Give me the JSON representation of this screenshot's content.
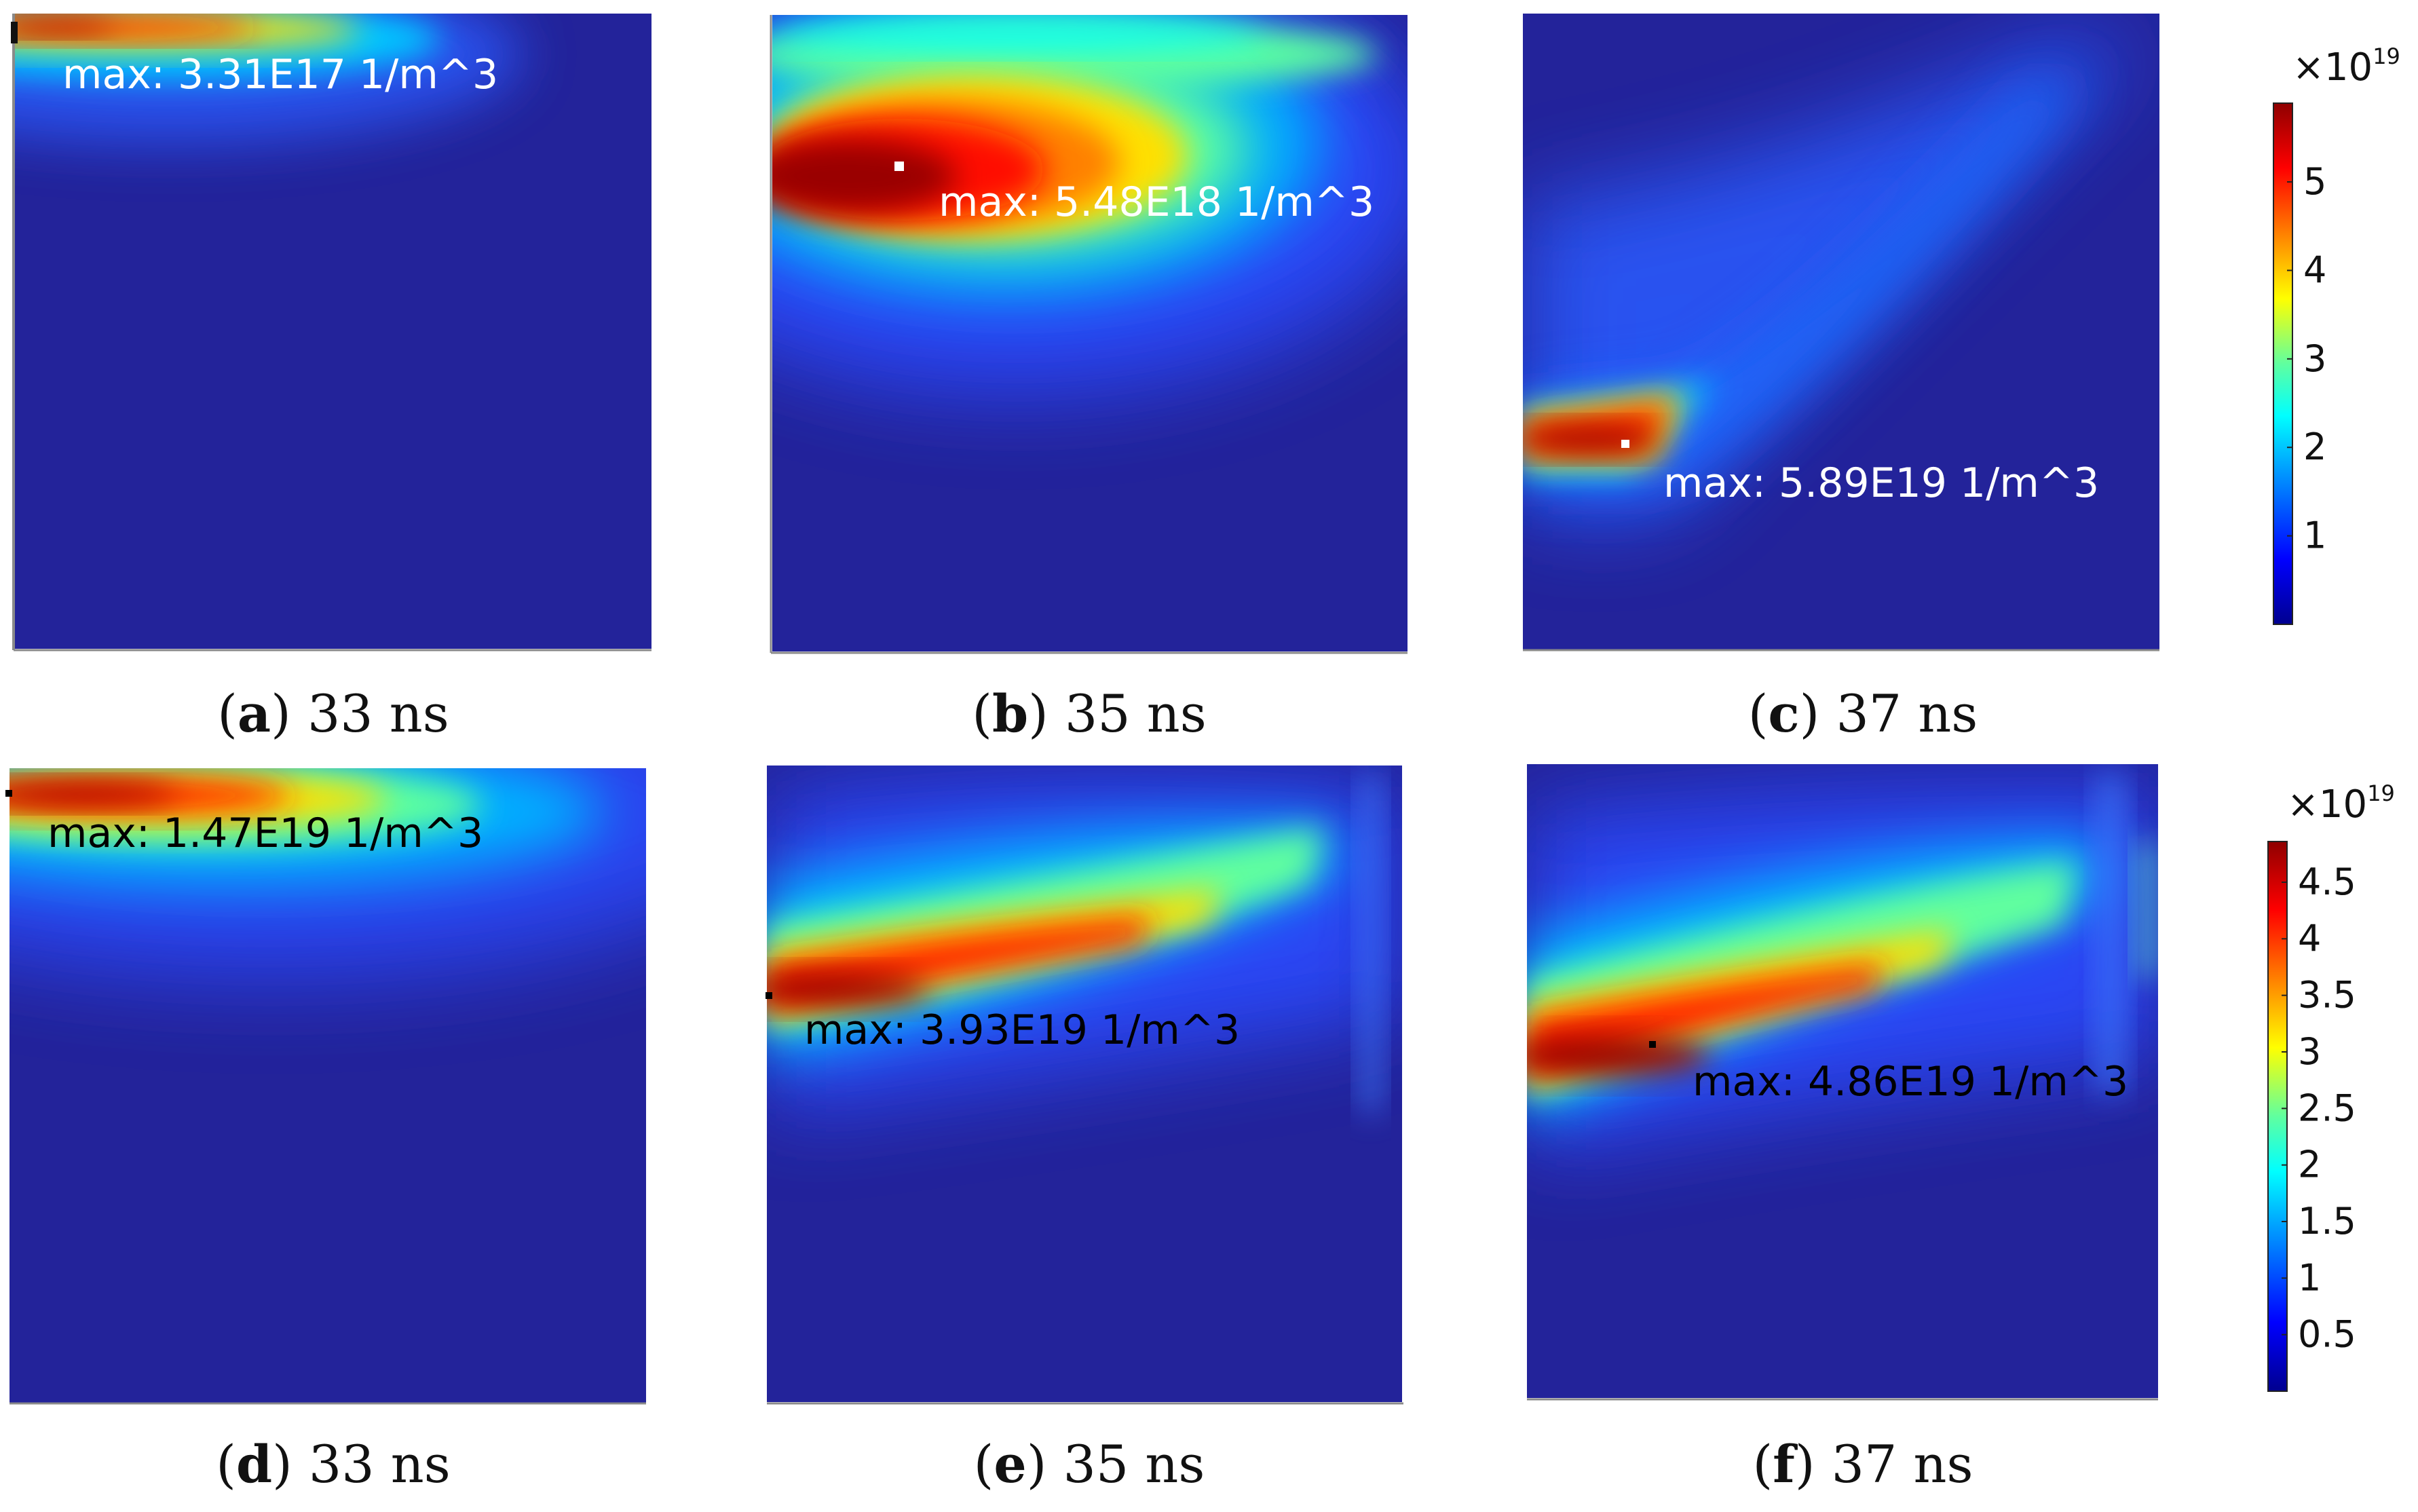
{
  "colors": {
    "jet": [
      "#00008f",
      "#0000ff",
      "#00a0ff",
      "#00ffff",
      "#60ff9f",
      "#ffff00",
      "#ff8000",
      "#ff0000",
      "#8f0000"
    ],
    "background_field": "#23239a",
    "axis_line": "#8a8a8a"
  },
  "chart_data": [
    {
      "type": "heatmap",
      "id": "a",
      "letter": "a",
      "time_label": "33 ns",
      "max_label": "max: 3.31E17 1/m^3",
      "max_label_color": "#ffffff",
      "max_point_color": "#ffffff",
      "colorbar_group": "top"
    },
    {
      "type": "heatmap",
      "id": "b",
      "letter": "b",
      "time_label": "35 ns",
      "max_label": "max: 5.48E18 1/m^3",
      "max_label_color": "#ffffff",
      "max_point_color": "#ffffff",
      "colorbar_group": "top"
    },
    {
      "type": "heatmap",
      "id": "c",
      "letter": "c",
      "time_label": "37 ns",
      "max_label": "max: 5.89E19 1/m^3",
      "max_label_color": "#ffffff",
      "max_point_color": "#ffffff",
      "colorbar_group": "top"
    },
    {
      "type": "heatmap",
      "id": "d",
      "letter": "d",
      "time_label": "33 ns",
      "max_label": "max: 1.47E19 1/m^3",
      "max_label_color": "#000000",
      "max_point_color": "#000000",
      "colorbar_group": "bottom"
    },
    {
      "type": "heatmap",
      "id": "e",
      "letter": "e",
      "time_label": "35 ns",
      "max_label": "max: 3.93E19 1/m^3",
      "max_label_color": "#000000",
      "max_point_color": "#000000",
      "colorbar_group": "bottom"
    },
    {
      "type": "heatmap",
      "id": "f",
      "letter": "f",
      "time_label": "37 ns",
      "max_label": "max: 4.86E19 1/m^3",
      "max_label_color": "#000000",
      "max_point_color": "#000000",
      "colorbar_group": "bottom"
    }
  ],
  "colorbars": {
    "top": {
      "multiplier": "×10",
      "exponent": "19",
      "range": [
        0,
        5.89
      ],
      "ticks": [
        1,
        2,
        3,
        4,
        5
      ],
      "tick_labels": [
        "1",
        "2",
        "3",
        "4",
        "5"
      ]
    },
    "bottom": {
      "multiplier": "×10",
      "exponent": "19",
      "range": [
        0,
        4.86
      ],
      "ticks": [
        0.5,
        1,
        1.5,
        2,
        2.5,
        3,
        3.5,
        4,
        4.5
      ],
      "tick_labels": [
        "0.5",
        "1",
        "1.5",
        "2",
        "2.5",
        "3",
        "3.5",
        "4",
        "4.5"
      ]
    }
  }
}
